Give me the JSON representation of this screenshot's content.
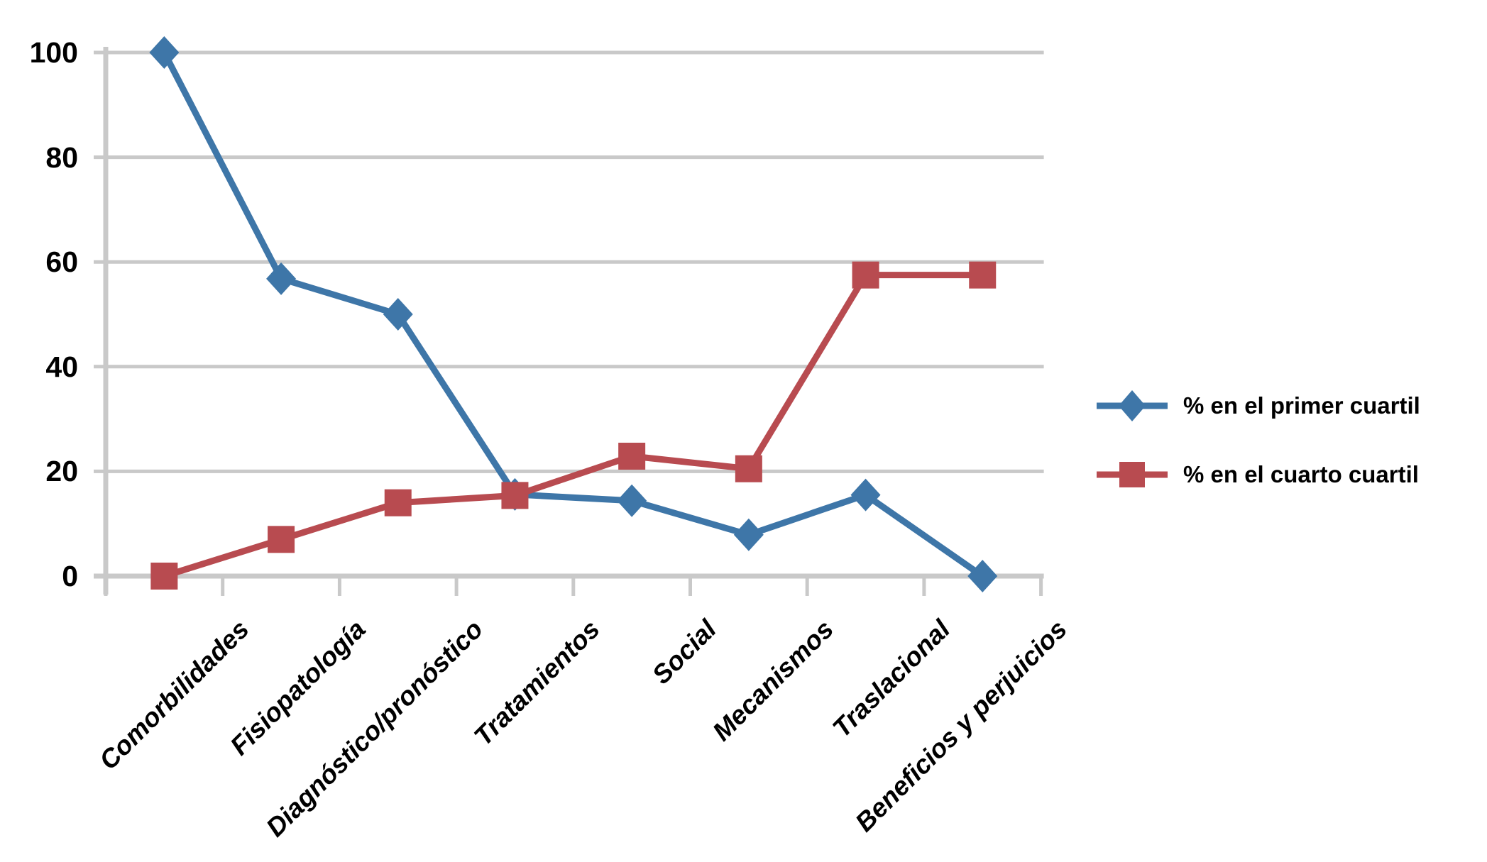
{
  "chart_data": {
    "type": "line",
    "title": "",
    "categories": [
      "Comorbilidades",
      "Fisiopatología",
      "Diagnóstico/pronóstico",
      "Tratamientos",
      "Social",
      "Mecanismos",
      "Traslacional",
      "Beneficios y perjuicios"
    ],
    "series": [
      {
        "name": "% en el primer cuartil",
        "marker": "diamond",
        "color": "#3E76A8",
        "values": [
          100,
          56.8,
          50,
          15.6,
          14.4,
          7.9,
          15.5,
          0
        ]
      },
      {
        "name": "% en el cuarto cuartil",
        "marker": "square",
        "color": "#B84B50",
        "values": [
          0,
          7,
          14,
          15.4,
          22.9,
          20.5,
          57.5,
          57.5
        ]
      }
    ],
    "xlabel": "",
    "ylabel": "",
    "ylim": [
      0,
      100
    ],
    "yticks": [
      0,
      20,
      40,
      60,
      80,
      100
    ],
    "grid": true,
    "legend_position": "right-middle"
  },
  "colors": {
    "gridline": "#C9C9C9",
    "axis": "#C9C9C9",
    "text": "#000000",
    "background": "#FFFFFF"
  }
}
